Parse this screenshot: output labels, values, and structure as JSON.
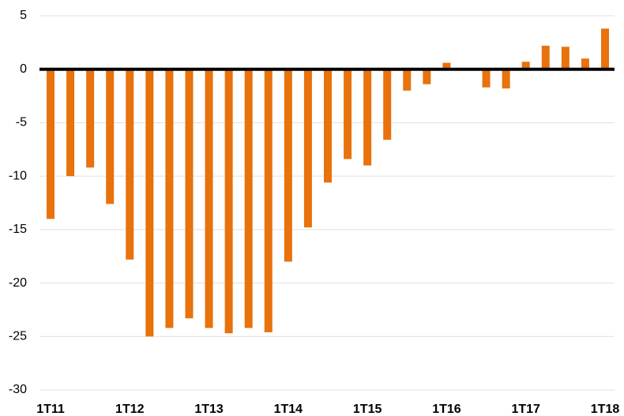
{
  "chart_data": {
    "type": "bar",
    "categories": [
      "1T11",
      null,
      null,
      null,
      "1T12",
      null,
      null,
      null,
      "1T13",
      null,
      null,
      null,
      "1T14",
      null,
      null,
      null,
      "1T15",
      null,
      null,
      null,
      "1T16",
      null,
      null,
      null,
      "1T17",
      null,
      null,
      null,
      "1T18"
    ],
    "values": [
      -14,
      -10,
      -9.2,
      -12.6,
      -17.8,
      -25,
      -24.2,
      -23.3,
      -24.2,
      -24.7,
      -24.2,
      -24.6,
      -18,
      -14.8,
      -10.6,
      -8.4,
      -9,
      -6.6,
      -2,
      -1.4,
      0.6,
      0,
      -1.7,
      -1.8,
      0.7,
      2.2,
      2.1,
      1,
      3.8
    ],
    "color": "#e8720c",
    "ylim": [
      -30,
      5
    ],
    "yticks": [
      -30,
      -25,
      -20,
      -15,
      -10,
      -5,
      0,
      5
    ],
    "grid": true
  }
}
